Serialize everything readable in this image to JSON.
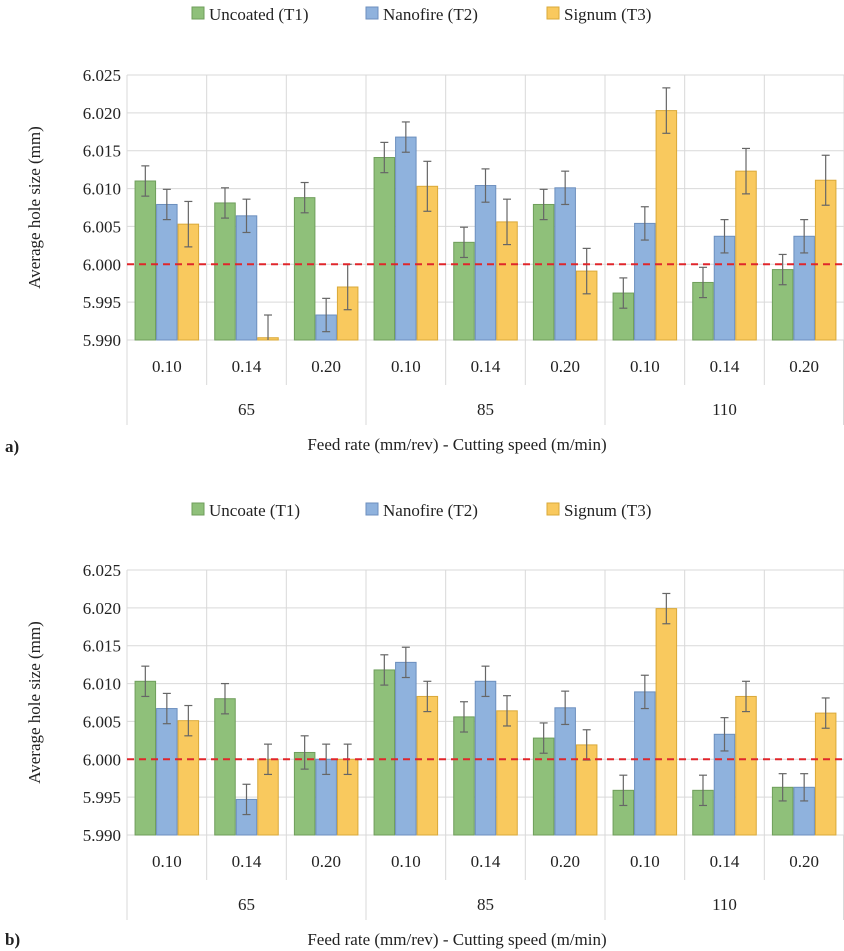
{
  "colors": {
    "series": [
      "#8fc07a",
      "#8fb2dd",
      "#f9c95e"
    ],
    "series_stroke": [
      "#6f9e5b",
      "#6c8fbe",
      "#d9a93a"
    ],
    "grid": "#d9d9d9",
    "reference_line": "#e0262b",
    "error_bar": "#666666"
  },
  "chart_data": [
    {
      "type": "bar",
      "panel_label": "a)",
      "xlabel": "Feed rate (mm/rev) - Cutting speed (m/min)",
      "ylabel": "Average hole size (mm)",
      "ylim": [
        5.99,
        6.025
      ],
      "yticks": [
        "5.990",
        "5.995",
        "6.000",
        "6.005",
        "6.010",
        "6.015",
        "6.020",
        "6.025"
      ],
      "reference_line": 6.0,
      "legend_position": "top-center",
      "categories": [
        "0.10",
        "0.14",
        "0.20",
        "0.10",
        "0.14",
        "0.20",
        "0.10",
        "0.14",
        "0.20"
      ],
      "groups": [
        {
          "label": "65",
          "span": 3
        },
        {
          "label": "85",
          "span": 3
        },
        {
          "label": "110",
          "span": 3
        }
      ],
      "series": [
        {
          "name": "Uncoated (T1)",
          "values": [
            6.011,
            6.0081,
            6.0088,
            6.0141,
            6.0029,
            6.0079,
            5.9962,
            5.9976,
            5.9993
          ],
          "errors": [
            0.002,
            0.002,
            0.002,
            0.002,
            0.002,
            0.002,
            0.002,
            0.002,
            0.002
          ]
        },
        {
          "name": "Nanofire (T2)",
          "values": [
            6.0079,
            6.0064,
            5.9933,
            6.0168,
            6.0104,
            6.0101,
            6.0054,
            6.0037,
            6.0037
          ],
          "errors": [
            0.002,
            0.0022,
            0.0022,
            0.002,
            0.0022,
            0.0022,
            0.0022,
            0.0022,
            0.0022
          ]
        },
        {
          "name": "Signum (T3)",
          "values": [
            6.0053,
            5.9903,
            5.997,
            6.0103,
            6.0056,
            5.9991,
            6.0203,
            6.0123,
            6.0111
          ],
          "errors": [
            0.003,
            0.003,
            0.003,
            0.0033,
            0.003,
            0.003,
            0.003,
            0.003,
            0.0033
          ]
        }
      ]
    },
    {
      "type": "bar",
      "panel_label": "b)",
      "xlabel": "Feed rate (mm/rev) - Cutting speed (m/min)",
      "ylabel": "Average hole size (mm)",
      "ylim": [
        5.99,
        6.025
      ],
      "yticks": [
        "5.990",
        "5.995",
        "6.000",
        "6.005",
        "6.010",
        "6.015",
        "6.020",
        "6.025"
      ],
      "reference_line": 6.0,
      "legend_position": "top-center",
      "categories": [
        "0.10",
        "0.14",
        "0.20",
        "0.10",
        "0.14",
        "0.20",
        "0.10",
        "0.14",
        "0.20"
      ],
      "groups": [
        {
          "label": "65",
          "span": 3
        },
        {
          "label": "85",
          "span": 3
        },
        {
          "label": "110",
          "span": 3
        }
      ],
      "series": [
        {
          "name": "Uncoate (T1)",
          "values": [
            6.0103,
            6.008,
            6.0009,
            6.0118,
            6.0056,
            6.0028,
            5.9959,
            5.9959,
            5.9963
          ],
          "errors": [
            0.002,
            0.002,
            0.0022,
            0.002,
            0.002,
            0.002,
            0.002,
            0.002,
            0.0018
          ]
        },
        {
          "name": "Nanofire (T2)",
          "values": [
            6.0067,
            5.9947,
            6.0,
            6.0128,
            6.0103,
            6.0068,
            6.0089,
            6.0033,
            5.9963
          ],
          "errors": [
            0.002,
            0.002,
            0.002,
            0.002,
            0.002,
            0.0022,
            0.0022,
            0.0022,
            0.0018
          ]
        },
        {
          "name": "Signum (T3)",
          "values": [
            6.0051,
            6.0,
            6.0,
            6.0083,
            6.0064,
            6.0019,
            6.0199,
            6.0083,
            6.0061
          ],
          "errors": [
            0.002,
            0.002,
            0.002,
            0.002,
            0.002,
            0.002,
            0.002,
            0.002,
            0.002
          ]
        }
      ]
    }
  ]
}
